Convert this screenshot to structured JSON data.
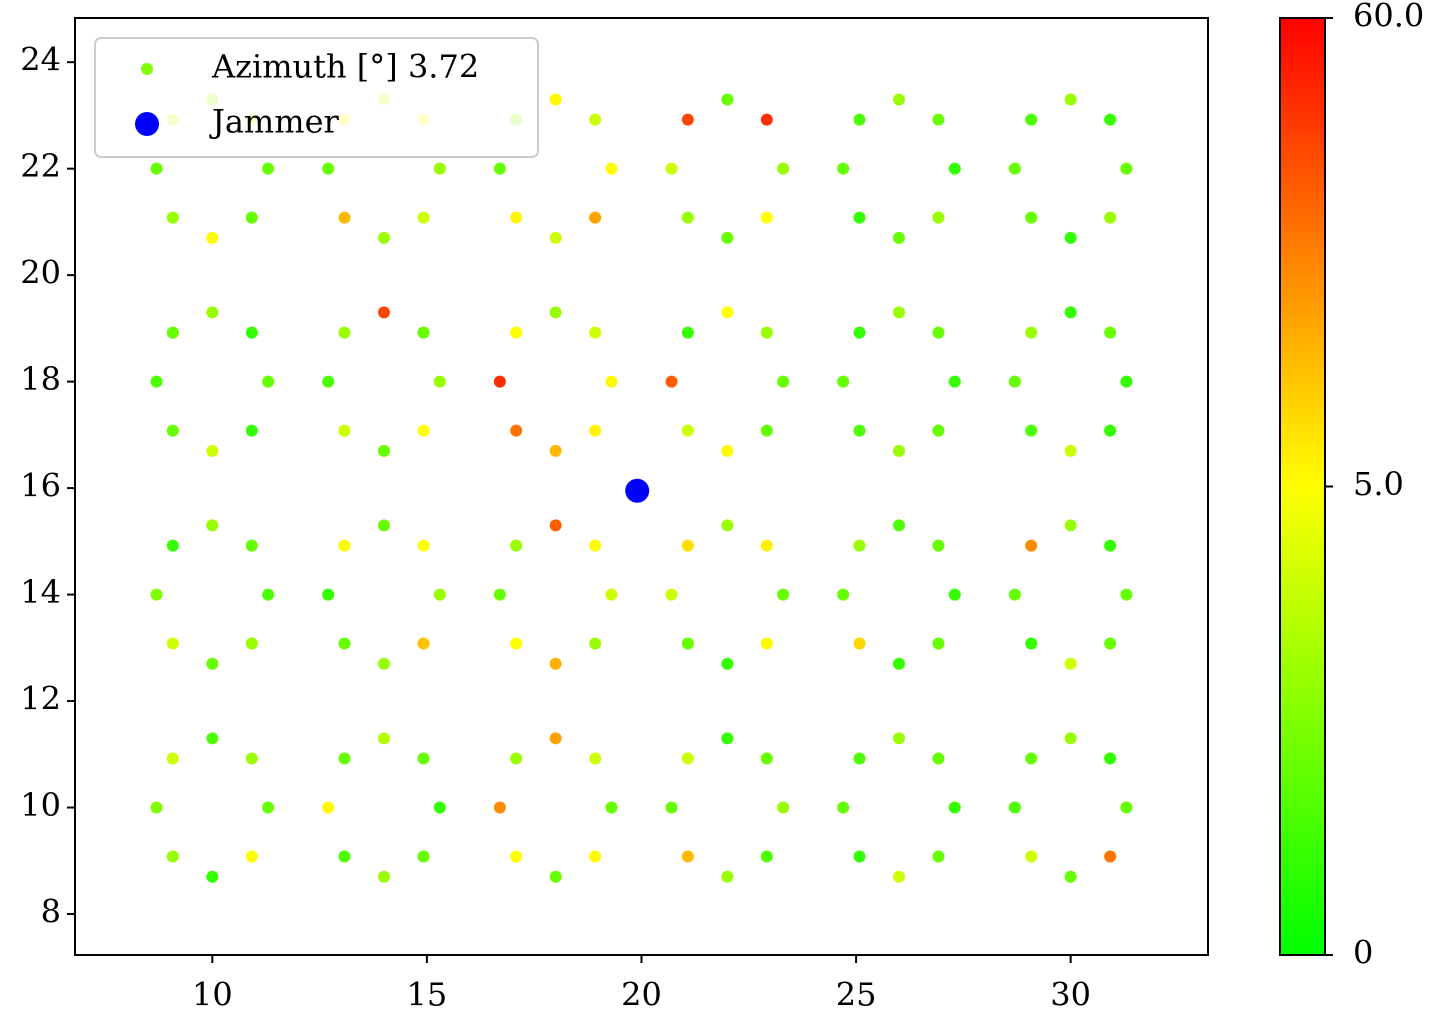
{
  "chart_data": {
    "type": "scatter",
    "xlim": [
      6.8,
      33.2
    ],
    "ylim": [
      7.23,
      24.83
    ],
    "xticks": [
      10,
      15,
      20,
      25,
      30
    ],
    "yticks": [
      8,
      10,
      12,
      14,
      16,
      18,
      20,
      22,
      24
    ],
    "legend": "upper left",
    "colormap": [
      "#00ff00",
      "#ffff00",
      "#ff0000"
    ],
    "colorbar": {
      "lim": [
        0,
        60
      ],
      "ticks": [
        0,
        {
          "value": 5,
          "label": "5.0"
        },
        {
          "value": 60,
          "label": "60.0"
        }
      ]
    },
    "series": [
      {
        "name": "Azimuth [°] 3.72",
        "legend_color": "#7fff00",
        "x": [
          11.3,
          10.92,
          10,
          9.08,
          8.7,
          9.08,
          10,
          10.92,
          15.3,
          14.92,
          14,
          13.08,
          12.7,
          13.08,
          14,
          14.92,
          19.3,
          18.92,
          18,
          17.08,
          16.7,
          17.08,
          18,
          18.92,
          23.3,
          22.92,
          22,
          21.08,
          20.7,
          21.08,
          22,
          22.92,
          27.3,
          26.92,
          26,
          25.08,
          24.7,
          25.08,
          26,
          26.92,
          31.3,
          30.92,
          30,
          29.08,
          28.7,
          29.08,
          30,
          30.92,
          11.3,
          10.92,
          10,
          9.08,
          8.7,
          9.08,
          10,
          10.92,
          15.3,
          14.92,
          14,
          13.08,
          12.7,
          13.08,
          14,
          14.92,
          19.3,
          18.92,
          18,
          17.08,
          16.7,
          17.08,
          18,
          18.92,
          23.3,
          22.92,
          22,
          21.08,
          20.7,
          21.08,
          22,
          22.92,
          27.3,
          26.92,
          26,
          25.08,
          24.7,
          25.08,
          26,
          26.92,
          31.3,
          30.92,
          30,
          29.08,
          28.7,
          29.08,
          30,
          30.92,
          11.3,
          10.92,
          10,
          9.08,
          8.7,
          9.08,
          10,
          10.92,
          15.3,
          14.92,
          14,
          13.08,
          12.7,
          13.08,
          14,
          14.92,
          19.3,
          18.92,
          18,
          17.08,
          16.7,
          17.08,
          18,
          18.92,
          23.3,
          22.92,
          22,
          21.08,
          20.7,
          21.08,
          22,
          22.92,
          27.3,
          26.92,
          26,
          25.08,
          24.7,
          25.08,
          26,
          26.92,
          31.3,
          30.92,
          30,
          29.08,
          28.7,
          29.08,
          30,
          30.92,
          11.3,
          10.92,
          10,
          9.08,
          8.7,
          9.08,
          10,
          10.92,
          15.3,
          14.92,
          14,
          13.08,
          12.7,
          13.08,
          14,
          14.92,
          19.3,
          18.92,
          18,
          17.08,
          16.7,
          17.08,
          18,
          18.92,
          23.3,
          22.92,
          22,
          21.08,
          20.7,
          21.08,
          22,
          22.92,
          27.3,
          26.92,
          26,
          25.08,
          24.7,
          25.08,
          26,
          26.92,
          31.3,
          30.92,
          30,
          29.08,
          28.7,
          29.08,
          30,
          30.92
        ],
        "values": [
          10,
          10.92,
          11.3,
          10.92,
          10,
          9.08,
          8.7,
          9.08,
          10,
          10.92,
          11.3,
          10.92,
          10,
          9.08,
          8.7,
          9.08,
          10,
          10.92,
          11.3,
          10.92,
          10,
          9.08,
          8.7,
          9.08,
          10,
          10.92,
          11.3,
          10.92,
          10,
          9.08,
          8.7,
          9.08,
          10,
          10.92,
          11.3,
          10.92,
          10,
          9.08,
          8.7,
          9.08,
          10,
          10.92,
          11.3,
          10.92,
          10,
          9.08,
          8.7,
          9.08,
          14,
          14.92,
          15.3,
          14.92,
          14,
          13.08,
          12.7,
          13.08,
          14,
          14.92,
          15.3,
          14.92,
          14,
          13.08,
          12.7,
          13.08,
          14,
          14.92,
          15.3,
          14.92,
          14,
          13.08,
          12.7,
          13.08,
          14,
          14.92,
          15.3,
          14.92,
          14,
          13.08,
          12.7,
          13.08,
          14,
          14.92,
          15.3,
          14.92,
          14,
          13.08,
          12.7,
          13.08,
          14,
          14.92,
          15.3,
          14.92,
          14,
          13.08,
          12.7,
          13.08,
          18,
          18.92,
          19.3,
          18.92,
          18,
          17.08,
          16.7,
          17.08,
          18,
          18.92,
          19.3,
          18.92,
          18,
          17.08,
          16.7,
          17.08,
          18,
          18.92,
          19.3,
          18.92,
          18,
          17.08,
          16.7,
          17.08,
          18,
          18.92,
          19.3,
          18.92,
          18,
          17.08,
          16.7,
          17.08,
          18,
          18.92,
          19.3,
          18.92,
          18,
          17.08,
          16.7,
          17.08,
          18,
          18.92,
          19.3,
          18.92,
          18,
          17.08,
          16.7,
          17.08,
          22,
          22.92,
          23.3,
          22.92,
          22,
          21.08,
          20.7,
          21.08,
          22,
          22.92,
          23.3,
          22.92,
          22,
          21.08,
          20.7,
          21.08,
          22,
          22.92,
          23.3,
          22.92,
          22,
          21.08,
          20.7,
          21.08,
          22,
          22.92,
          23.3,
          22.92,
          22,
          21.08,
          20.7,
          21.08,
          22,
          22.92,
          23.3,
          22.92,
          22,
          21.08,
          20.7,
          21.08,
          22,
          22.92,
          23.3,
          22.92,
          22,
          21.08,
          20.7,
          21.08
        ],
        "color_values": [
          2,
          3,
          1.5,
          4,
          2.5,
          3,
          1,
          5.5,
          1,
          2,
          3.5,
          2,
          6,
          1.5,
          3,
          2,
          2,
          4,
          25,
          3,
          30,
          5,
          2,
          6,
          3,
          2,
          1,
          4,
          2,
          20,
          3,
          1.5,
          1,
          2,
          3,
          1.5,
          2,
          1,
          4,
          2,
          2,
          1,
          3,
          2,
          1.5,
          4,
          2,
          35,
          1.5,
          2,
          3,
          1,
          2.5,
          4,
          2,
          3,
          3,
          5,
          2,
          6,
          1,
          2,
          3,
          18,
          4,
          6,
          40,
          3,
          2,
          5,
          22,
          3,
          2,
          8,
          3,
          12,
          4,
          2,
          1,
          6,
          1,
          2,
          1.5,
          3,
          2,
          14,
          1,
          2,
          2,
          1,
          3,
          30,
          2,
          1,
          4,
          2,
          2,
          1,
          3,
          2,
          1.5,
          2,
          4,
          1,
          3,
          2,
          45,
          3,
          1.5,
          4,
          2,
          5,
          6,
          4,
          3,
          5,
          50,
          35,
          20,
          7,
          2,
          3,
          5,
          1,
          40,
          4,
          6,
          2,
          1,
          2,
          3,
          1,
          2,
          1.5,
          3,
          2,
          1,
          2,
          1,
          3,
          2,
          1.5,
          4,
          1,
          2,
          5,
          3,
          4,
          2,
          3,
          6,
          2,
          3,
          6,
          4,
          5,
          2,
          20,
          3,
          4,
          5,
          4,
          6,
          3,
          2,
          7,
          4,
          25,
          3,
          50,
          2,
          45,
          4,
          3,
          2,
          5,
          1,
          2,
          3,
          1.5,
          2,
          1,
          2,
          3,
          2,
          1,
          3,
          1.5,
          2,
          2,
          1,
          3
        ]
      },
      {
        "name": "Jammer",
        "color": "#0000ff",
        "x": [
          19.9
        ],
        "values": [
          15.95
        ]
      }
    ]
  }
}
